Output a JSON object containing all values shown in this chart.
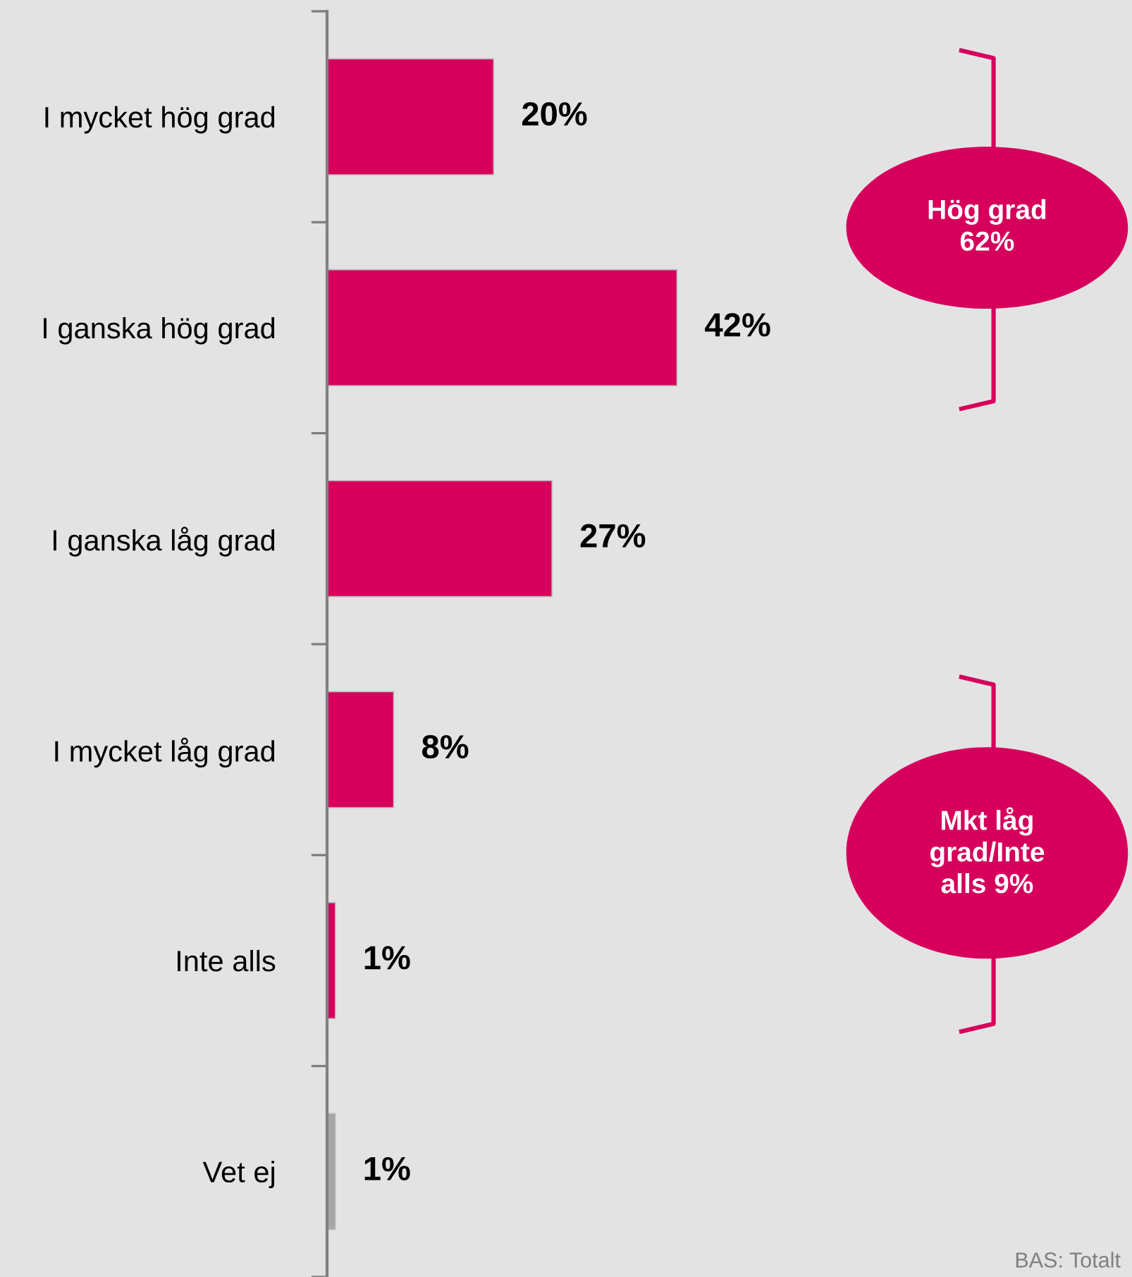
{
  "chart_data": {
    "type": "bar",
    "orientation": "horizontal",
    "categories": [
      "I mycket hög grad",
      "I ganska hög grad",
      "I ganska låg grad",
      "I mycket låg grad",
      "Inte alls",
      "Vet ej"
    ],
    "values": [
      20,
      42,
      27,
      8,
      1,
      1
    ],
    "colors": [
      "#d6005c",
      "#d6005c",
      "#d6005c",
      "#d6005c",
      "#d6005c",
      "#a6a6a6"
    ],
    "value_labels": [
      "20%",
      "42%",
      "27%",
      "8%",
      "1%",
      "1%"
    ],
    "annotations": [
      "Hög grad\n62%",
      "Mkt låg\ngrad/Inte\nalls 9%",
      "BAS: Totalt"
    ],
    "grid": false,
    "legend": false
  }
}
